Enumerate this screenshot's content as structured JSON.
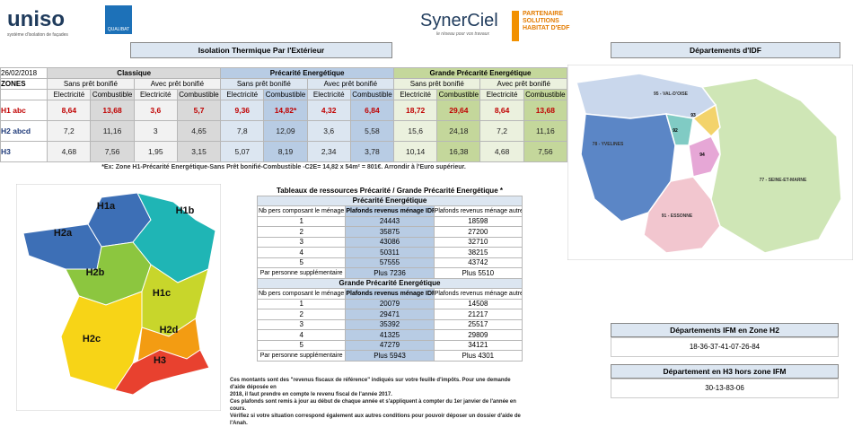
{
  "header": {
    "brand": "uniso",
    "brand_tagline": "système d'isolation de façades",
    "certification": "QUALIBAT",
    "partner": "SynerCiel",
    "partner_tagline": "le réseau pour vos travaux",
    "edf_badge": "PARTENAIRE SOLUTIONS HABITAT D'EDF"
  },
  "title": "Isolation Thermique Par l'Extérieur",
  "main_table": {
    "date": "26/02/2018",
    "zones_label": "ZONES",
    "groups": [
      "Classique",
      "Précarité Energétique",
      "Grande Précarité Energétique"
    ],
    "subgroups": [
      "Sans prêt bonifié",
      "Avec prêt bonifié"
    ],
    "columns": [
      "Electricité",
      "Combustible"
    ],
    "rows": [
      {
        "zone": "H1 abc",
        "values": [
          "8,64",
          "13,68",
          "3,6",
          "5,7",
          "9,36",
          "14,82*",
          "4,32",
          "6,84",
          "18,72",
          "29,64",
          "8,64",
          "13,68"
        ]
      },
      {
        "zone": "H2 abcd",
        "values": [
          "7,2",
          "11,16",
          "3",
          "4,65",
          "7,8",
          "12,09",
          "3,6",
          "5,58",
          "15,6",
          "24,18",
          "7,2",
          "11,16"
        ]
      },
      {
        "zone": "H3",
        "values": [
          "4,68",
          "7,56",
          "1,95",
          "3,15",
          "5,07",
          "8,19",
          "2,34",
          "3,78",
          "10,14",
          "16,38",
          "4,68",
          "7,56"
        ]
      }
    ]
  },
  "footnote": "*Ex: Zone H1-Précarité Energétique-Sans Prêt bonifié-Combustible -C2E= 14,82 x 54m² = 801€. Arrondir à l'Euro supérieur.",
  "resources": {
    "title": "Tableaux de ressources Précarité / Grande Précarité Energétique *",
    "headers": [
      "Nb pers composant le ménage",
      "Plafonds revenus ménage IDF",
      "Plafonds revenus ménage autres reg"
    ],
    "sections": [
      {
        "title": "Précarité Energétique",
        "rows": [
          [
            "1",
            "24443",
            "18598"
          ],
          [
            "2",
            "35875",
            "27200"
          ],
          [
            "3",
            "43086",
            "32710"
          ],
          [
            "4",
            "50311",
            "38215"
          ],
          [
            "5",
            "57555",
            "43742"
          ]
        ],
        "extra": [
          "Par personne supplémentaire",
          "Plus 7236",
          "Plus 5510"
        ]
      },
      {
        "title": "Grande Précarité Energétique",
        "rows": [
          [
            "1",
            "20079",
            "14508"
          ],
          [
            "2",
            "29471",
            "21217"
          ],
          [
            "3",
            "35392",
            "25517"
          ],
          [
            "4",
            "41325",
            "29809"
          ],
          [
            "5",
            "47279",
            "34121"
          ]
        ],
        "extra": [
          "Par personne supplémentaire",
          "Plus 5943",
          "Plus 4301"
        ]
      }
    ]
  },
  "note": [
    "Ces montants sont des \"revenus fiscaux de référence\" indiqués sur votre feuille d'impôts. Pour une demande d'aide déposée en",
    "2018, il faut prendre en compte le revenu fiscal de l'année 2017.",
    "Ces plafonds sont remis à jour au début de chaque année et s'appliquent à compter du 1er janvier de l'année en cours.",
    "Vérifiez si votre situation correspond également aux autres conditions pour pouvoir déposer un dossier d'aide de l'Anah."
  ],
  "france_map": {
    "zones": [
      "H1a",
      "H1b",
      "H2a",
      "H2b",
      "H1c",
      "H2c",
      "H2d",
      "H3"
    ]
  },
  "idf_map": {
    "title": "Départements d'IDF",
    "labels": [
      "95 - VAL-D'OISE",
      "78 - YVELINES",
      "91 - ESSONNE",
      "77 - SEINE-ET-MARNE",
      "93",
      "92",
      "94"
    ]
  },
  "ifm": [
    {
      "title": "Départements IFM en Zone H2",
      "value": "18-36-37-41-07-26-84"
    },
    {
      "title": "Département en H3 hors zone IFM",
      "value": "30-13-83-06"
    }
  ]
}
